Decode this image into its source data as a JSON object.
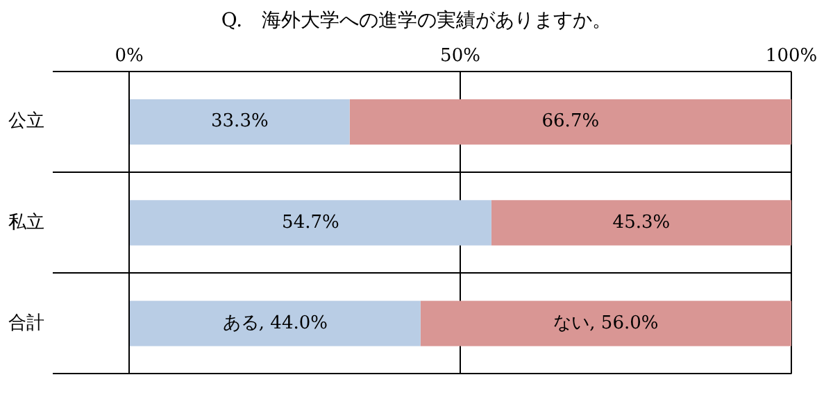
{
  "chart_data": {
    "type": "bar",
    "title": "Q.　海外大学への進学の実績がありますか。",
    "orientation": "horizontal",
    "stacked": true,
    "categories": [
      "公立",
      "私立",
      "合計"
    ],
    "series": [
      {
        "name": "ある",
        "color": "#b9cde5",
        "values": [
          33.3,
          54.7,
          44.0
        ],
        "value_labels": [
          "33.3%",
          "54.7%",
          ", 44.0%"
        ]
      },
      {
        "name": "ない",
        "color": "#d99694",
        "values": [
          66.7,
          45.3,
          56.0
        ],
        "value_labels": [
          "66.7%",
          "45.3%",
          ", 56.0%"
        ]
      }
    ],
    "xlim": [
      0,
      100
    ],
    "xticks": [
      {
        "value": 0,
        "label": "0%"
      },
      {
        "value": 50,
        "label": "50%"
      },
      {
        "value": 100,
        "label": "100%"
      }
    ],
    "grid": true,
    "legend": false
  }
}
